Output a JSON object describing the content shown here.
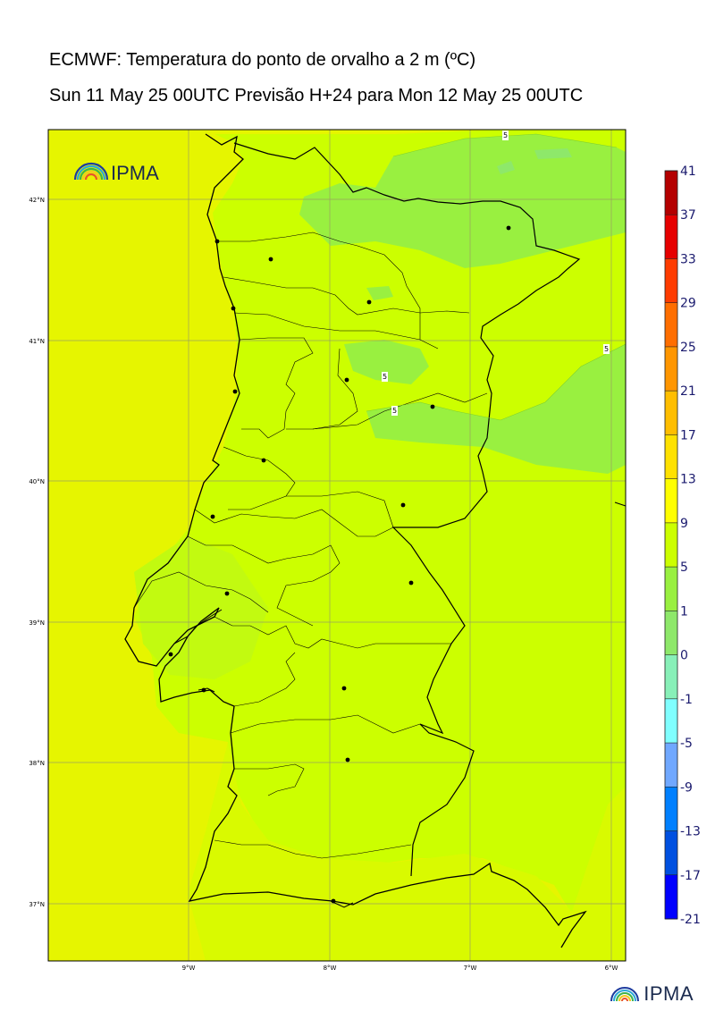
{
  "header": {
    "title": "ECMWF: Temperatura do ponto de orvalho a 2 m (ºC)",
    "subtitle": "Sun 11 May 25 00UTC Previsão H+24 para Mon 12 May 25 00UTC"
  },
  "logo": {
    "text": "IPMA"
  },
  "footer_logo": {
    "text": "IPMA"
  },
  "map": {
    "lat_labels": [
      "42°N",
      "41°N",
      "40°N",
      "39°N",
      "38°N",
      "37°N"
    ],
    "lon_labels": [
      "9°W",
      "8°W",
      "7°W",
      "6°W"
    ],
    "contour_labels": [
      "5",
      "5",
      "5",
      "5"
    ],
    "colors": {
      "field_main": "#ccff00",
      "field_warm": "#e6f500",
      "field_cool": "#99f040",
      "field_light": "#8ee86a"
    }
  },
  "colorbar": {
    "ticks": [
      "41",
      "37",
      "33",
      "29",
      "25",
      "21",
      "17",
      "13",
      "9",
      "5",
      "1",
      "0",
      "-1",
      "-5",
      "-9",
      "-13",
      "-17",
      "-21"
    ],
    "colors": [
      "#b40000",
      "#e60000",
      "#ff3c00",
      "#ff6e00",
      "#ff9600",
      "#ffbe00",
      "#ffe100",
      "#ffff00",
      "#ccff00",
      "#99f040",
      "#8ee86a",
      "#88f0b8",
      "#80ffff",
      "#70a8ff",
      "#0080ff",
      "#0050e0",
      "#0000ff",
      "#8a00ff"
    ]
  }
}
